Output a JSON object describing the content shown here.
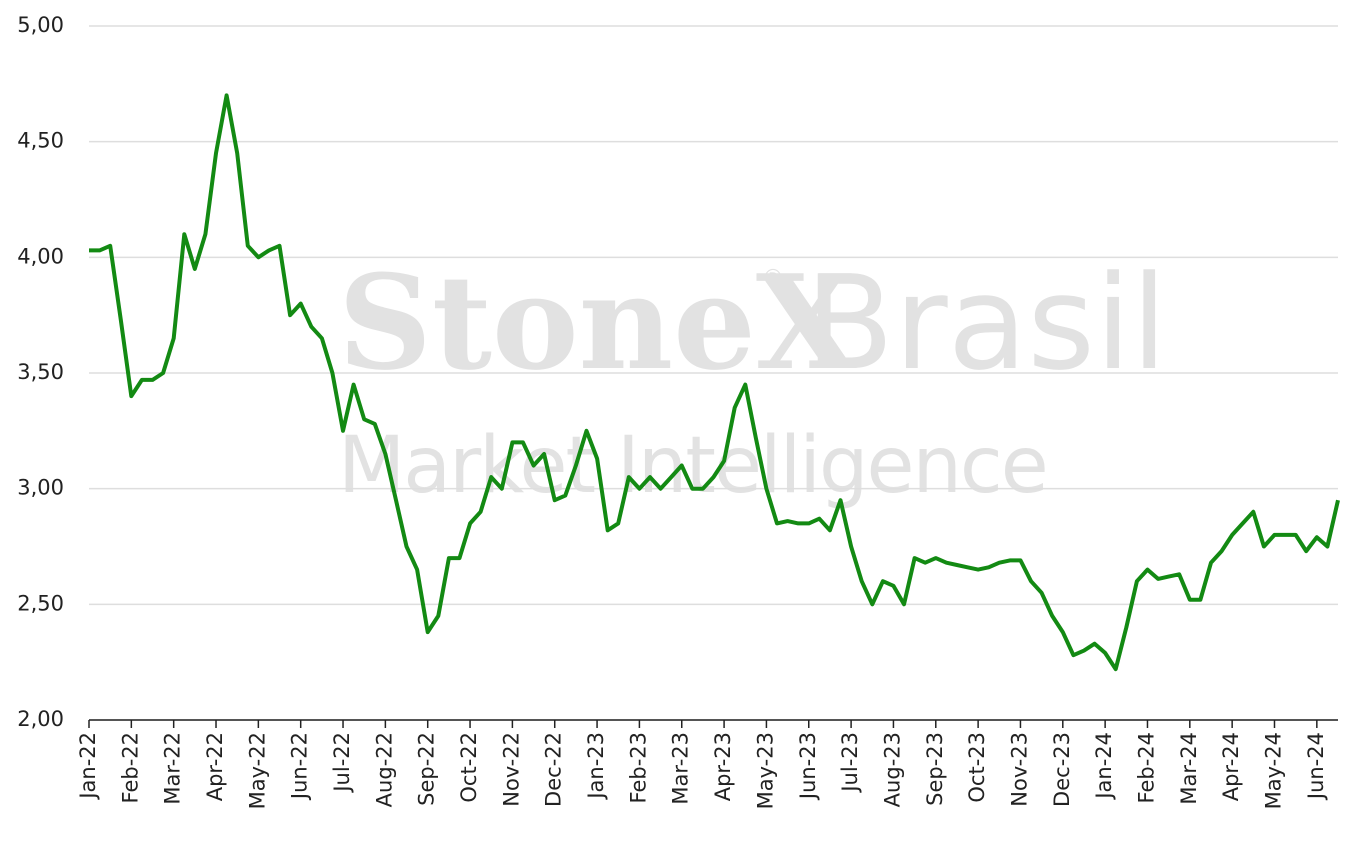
{
  "chart_data": {
    "type": "line",
    "watermark": {
      "brand": "StoneX",
      "mark": "®",
      "region": "Brasil",
      "subtitle": "Market Intelligence"
    },
    "categories": [
      "Jan-22",
      null,
      null,
      null,
      "Feb-22",
      null,
      null,
      null,
      "Mar-22",
      null,
      null,
      null,
      "Apr-22",
      null,
      null,
      null,
      "May-22",
      null,
      null,
      null,
      "Jun-22",
      null,
      null,
      null,
      "Jul-22",
      null,
      null,
      null,
      "Aug-22",
      null,
      null,
      null,
      "Sep-22",
      null,
      null,
      null,
      "Oct-22",
      null,
      null,
      null,
      "Nov-22",
      null,
      null,
      null,
      "Dec-22",
      null,
      null,
      null,
      "Jan-23",
      null,
      null,
      null,
      "Feb-23",
      null,
      null,
      null,
      "Mar-23",
      null,
      null,
      null,
      "Apr-23",
      null,
      null,
      null,
      "May-23",
      null,
      null,
      null,
      "Jun-23",
      null,
      null,
      null,
      "Jul-23",
      null,
      null,
      null,
      "Aug-23",
      null,
      null,
      null,
      "Sep-23",
      null,
      null,
      null,
      "Oct-23",
      null,
      null,
      null,
      "Nov-23",
      null,
      null,
      null,
      "Dec-23",
      null,
      null,
      null,
      "Jan-24",
      null,
      null,
      null,
      "Feb-24",
      null,
      null,
      null,
      "Mar-24",
      null,
      null,
      null,
      "Apr-24",
      null,
      null,
      null,
      "May-24",
      null,
      null,
      null,
      "Jun-24",
      null,
      null
    ],
    "series": [
      {
        "name": null,
        "color": "#138a13",
        "values": [
          4.03,
          4.03,
          4.05,
          3.73,
          3.4,
          3.47,
          3.47,
          3.5,
          3.65,
          4.1,
          3.95,
          4.1,
          4.45,
          4.7,
          4.45,
          4.05,
          4.0,
          4.03,
          4.05,
          3.75,
          3.8,
          3.7,
          3.65,
          3.5,
          3.25,
          3.45,
          3.3,
          3.28,
          3.15,
          2.95,
          2.75,
          2.65,
          2.38,
          2.45,
          2.7,
          2.7,
          2.85,
          2.9,
          3.05,
          3.0,
          3.2,
          3.2,
          3.1,
          3.15,
          2.95,
          2.97,
          3.1,
          3.25,
          3.13,
          2.82,
          2.85,
          3.05,
          3.0,
          3.05,
          3.0,
          3.05,
          3.1,
          3.0,
          3.0,
          3.05,
          3.12,
          3.35,
          3.45,
          3.22,
          3.0,
          2.85,
          2.86,
          2.85,
          2.85,
          2.87,
          2.82,
          2.95,
          2.75,
          2.6,
          2.5,
          2.6,
          2.58,
          2.5,
          2.7,
          2.68,
          2.7,
          2.68,
          2.67,
          2.66,
          2.65,
          2.66,
          2.68,
          2.69,
          2.69,
          2.6,
          2.55,
          2.45,
          2.38,
          2.28,
          2.3,
          2.33,
          2.29,
          2.22,
          2.4,
          2.6,
          2.65,
          2.61,
          2.62,
          2.63,
          2.52,
          2.52,
          2.68,
          2.73,
          2.8,
          2.85,
          2.9,
          2.75,
          2.8,
          2.8,
          2.8,
          2.73,
          2.79,
          2.75,
          2.95
        ]
      }
    ],
    "ylim": [
      2,
      5
    ],
    "yticks": [
      {
        "value": 2,
        "label": "2,00"
      },
      {
        "value": 2.5,
        "label": "2,50"
      },
      {
        "value": 3,
        "label": "3,00"
      },
      {
        "value": 3.5,
        "label": "3,50"
      },
      {
        "value": 4,
        "label": "4,00"
      },
      {
        "value": 4.5,
        "label": "4,50"
      },
      {
        "value": 5,
        "label": "5,00"
      }
    ],
    "grid": true
  }
}
